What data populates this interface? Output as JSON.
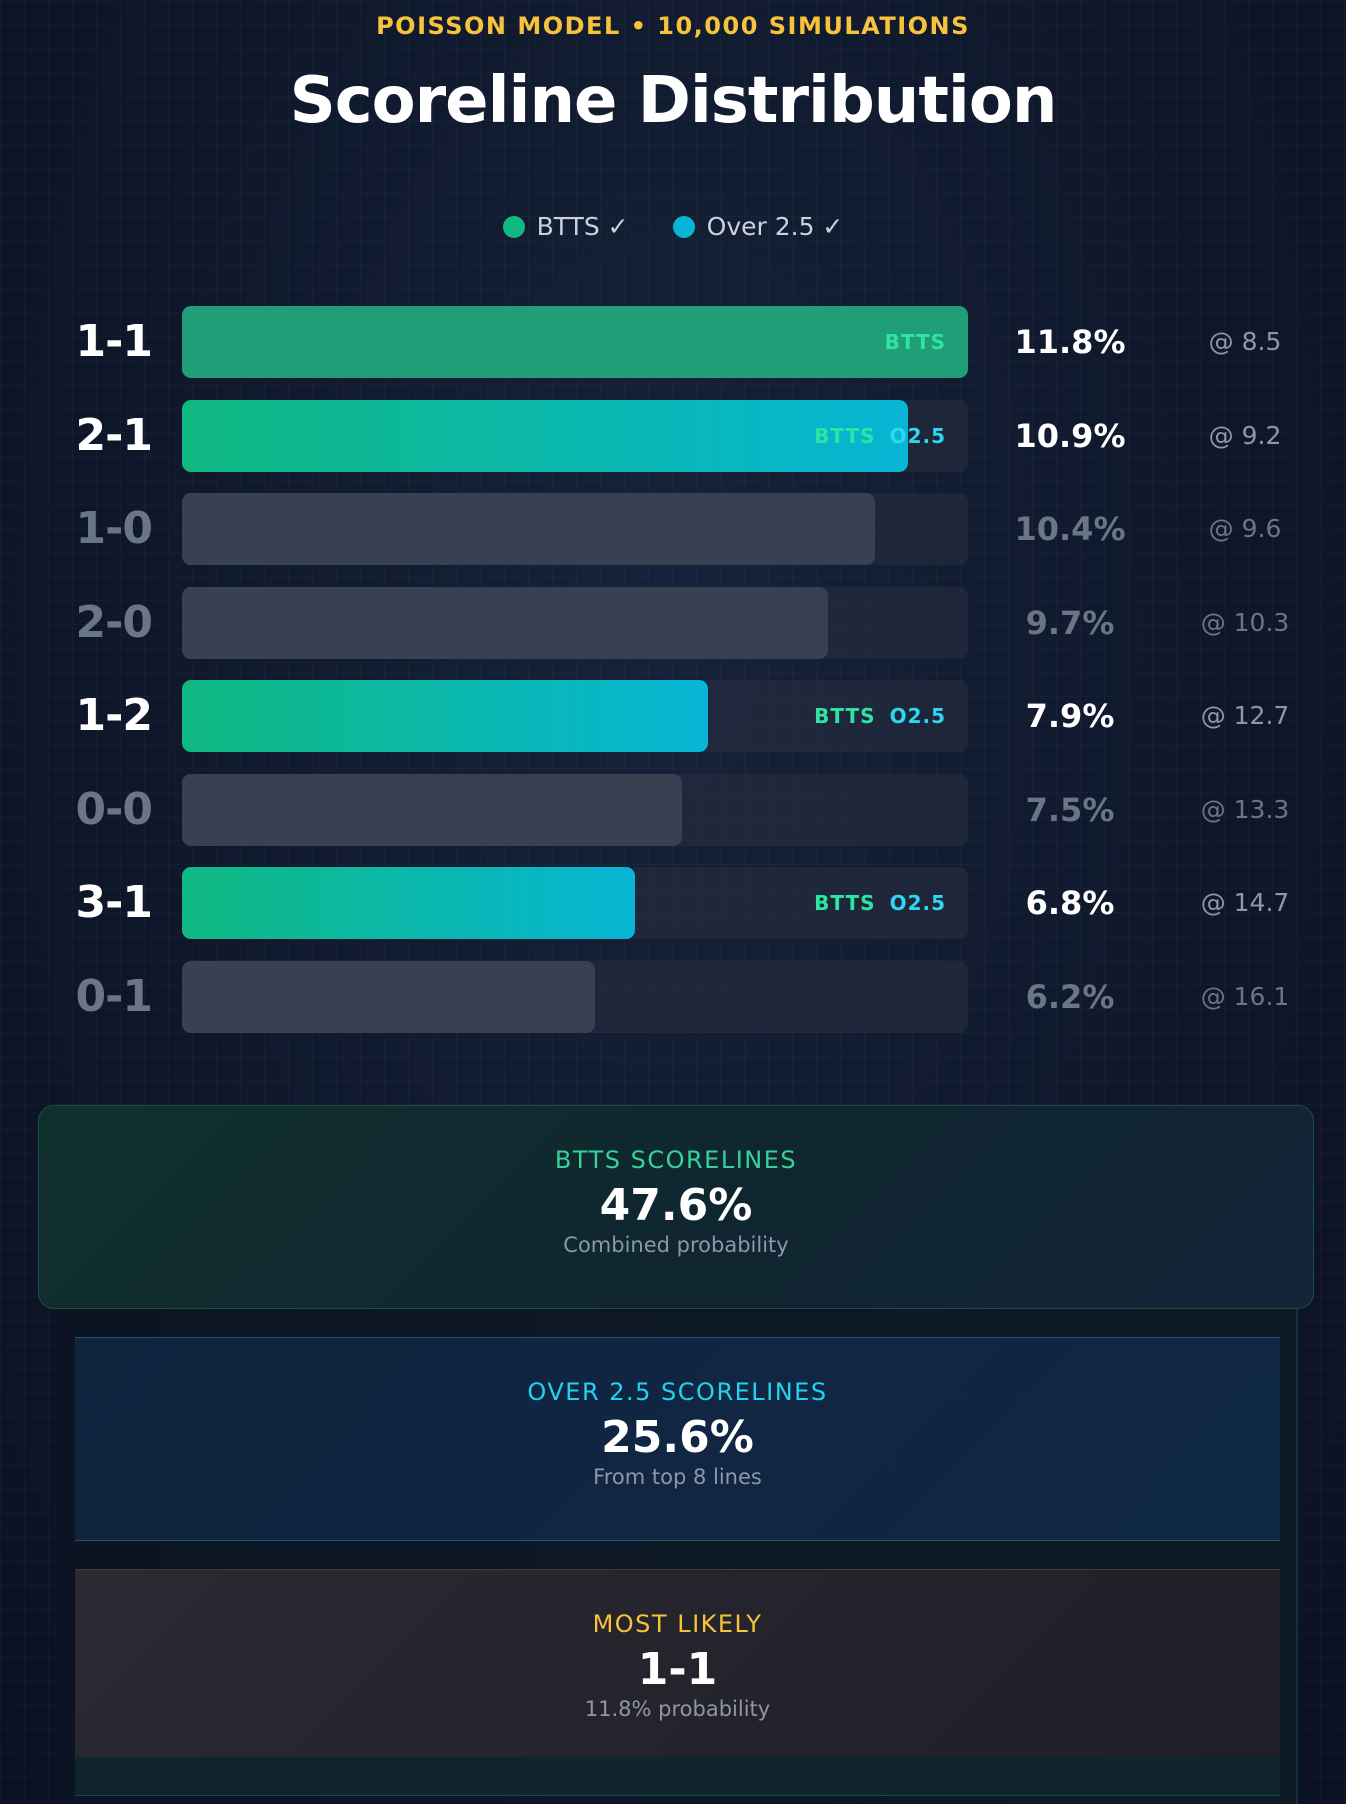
{
  "header": {
    "eyebrow": "POISSON MODEL • 10,000 SIMULATIONS",
    "title": "Scoreline Distribution"
  },
  "legend": [
    {
      "label": "BTTS ✓",
      "color": "#10b981"
    },
    {
      "label": "Over 2.5 ✓",
      "color": "#06b6d4"
    }
  ],
  "chart_data": {
    "type": "bar",
    "orientation": "horizontal",
    "categories": [
      "1-1",
      "2-1",
      "1-0",
      "2-0",
      "1-2",
      "0-0",
      "3-1",
      "0-1"
    ],
    "values": [
      11.8,
      10.9,
      10.4,
      9.7,
      7.9,
      7.5,
      6.8,
      6.2
    ],
    "value_labels": [
      "11.8%",
      "10.9%",
      "10.4%",
      "9.7%",
      "7.9%",
      "7.5%",
      "6.8%",
      "6.2%"
    ],
    "odds": [
      "@ 8.5",
      "@ 9.2",
      "@ 9.6",
      "@ 10.3",
      "@ 12.7",
      "@ 13.3",
      "@ 14.7",
      "@ 16.1"
    ],
    "btts": [
      true,
      true,
      false,
      false,
      true,
      false,
      true,
      false
    ],
    "over25": [
      false,
      true,
      false,
      false,
      true,
      false,
      true,
      false
    ],
    "xlim": [
      0,
      11.8
    ],
    "tag_btts": "BTTS",
    "tag_over": "O2.5",
    "colors": {
      "btts": "#10b981",
      "over": "#06b6d4",
      "btts_dark": "#1f9e77",
      "neutral": "#374151",
      "track": "#242c3b"
    }
  },
  "summary": {
    "btts": {
      "label": "BTTS SCORELINES",
      "value": "47.6%",
      "sub": "Combined probability",
      "color": "#34d399"
    },
    "over": {
      "label": "OVER 2.5 SCORELINES",
      "value": "25.6%",
      "sub": "From top 8 lines",
      "color": "#22d3ee"
    },
    "likely": {
      "label": "MOST LIKELY",
      "value": "1-1",
      "sub": "11.8% probability",
      "color": "#f6c33a"
    }
  }
}
